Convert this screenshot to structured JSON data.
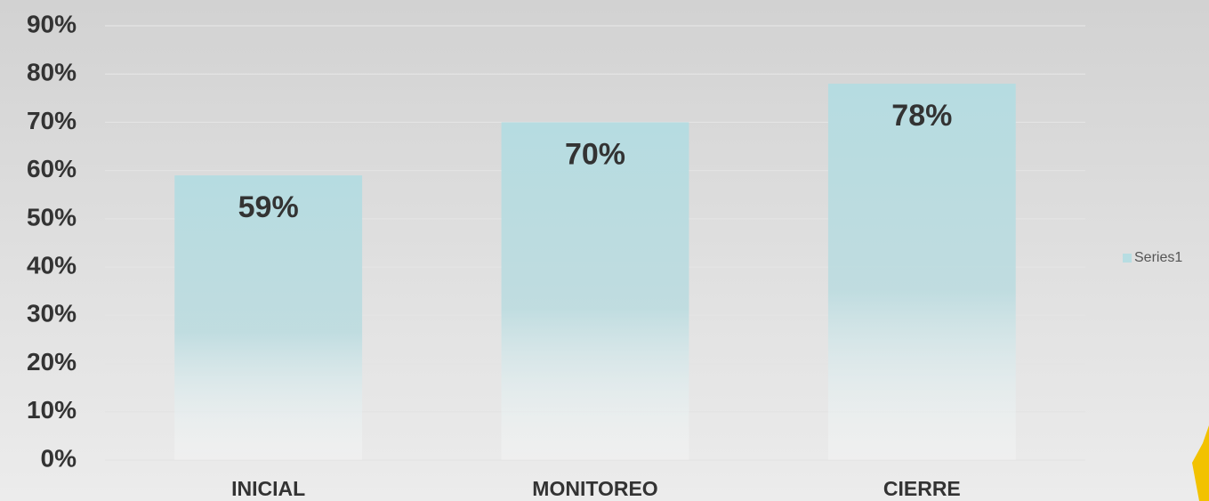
{
  "chart_data": {
    "type": "bar",
    "categories": [
      "INICIAL",
      "MONITOREO",
      "CIERRE"
    ],
    "series": [
      {
        "name": "Series1",
        "color": "#b7dde2",
        "values": [
          59,
          70,
          78
        ],
        "value_labels": [
          "59%",
          "70%",
          "78%"
        ]
      }
    ],
    "ylim": [
      0,
      90
    ],
    "yticks": [
      {
        "value": 0,
        "label": "0%"
      },
      {
        "value": 10,
        "label": "10%"
      },
      {
        "value": 20,
        "label": "20%"
      },
      {
        "value": 30,
        "label": "30%"
      },
      {
        "value": 40,
        "label": "40%"
      },
      {
        "value": 50,
        "label": "50%"
      },
      {
        "value": 60,
        "label": "60%"
      },
      {
        "value": 70,
        "label": "70%"
      },
      {
        "value": 80,
        "label": "80%"
      },
      {
        "value": 90,
        "label": "90%"
      }
    ],
    "grid": true,
    "legend": "right"
  }
}
